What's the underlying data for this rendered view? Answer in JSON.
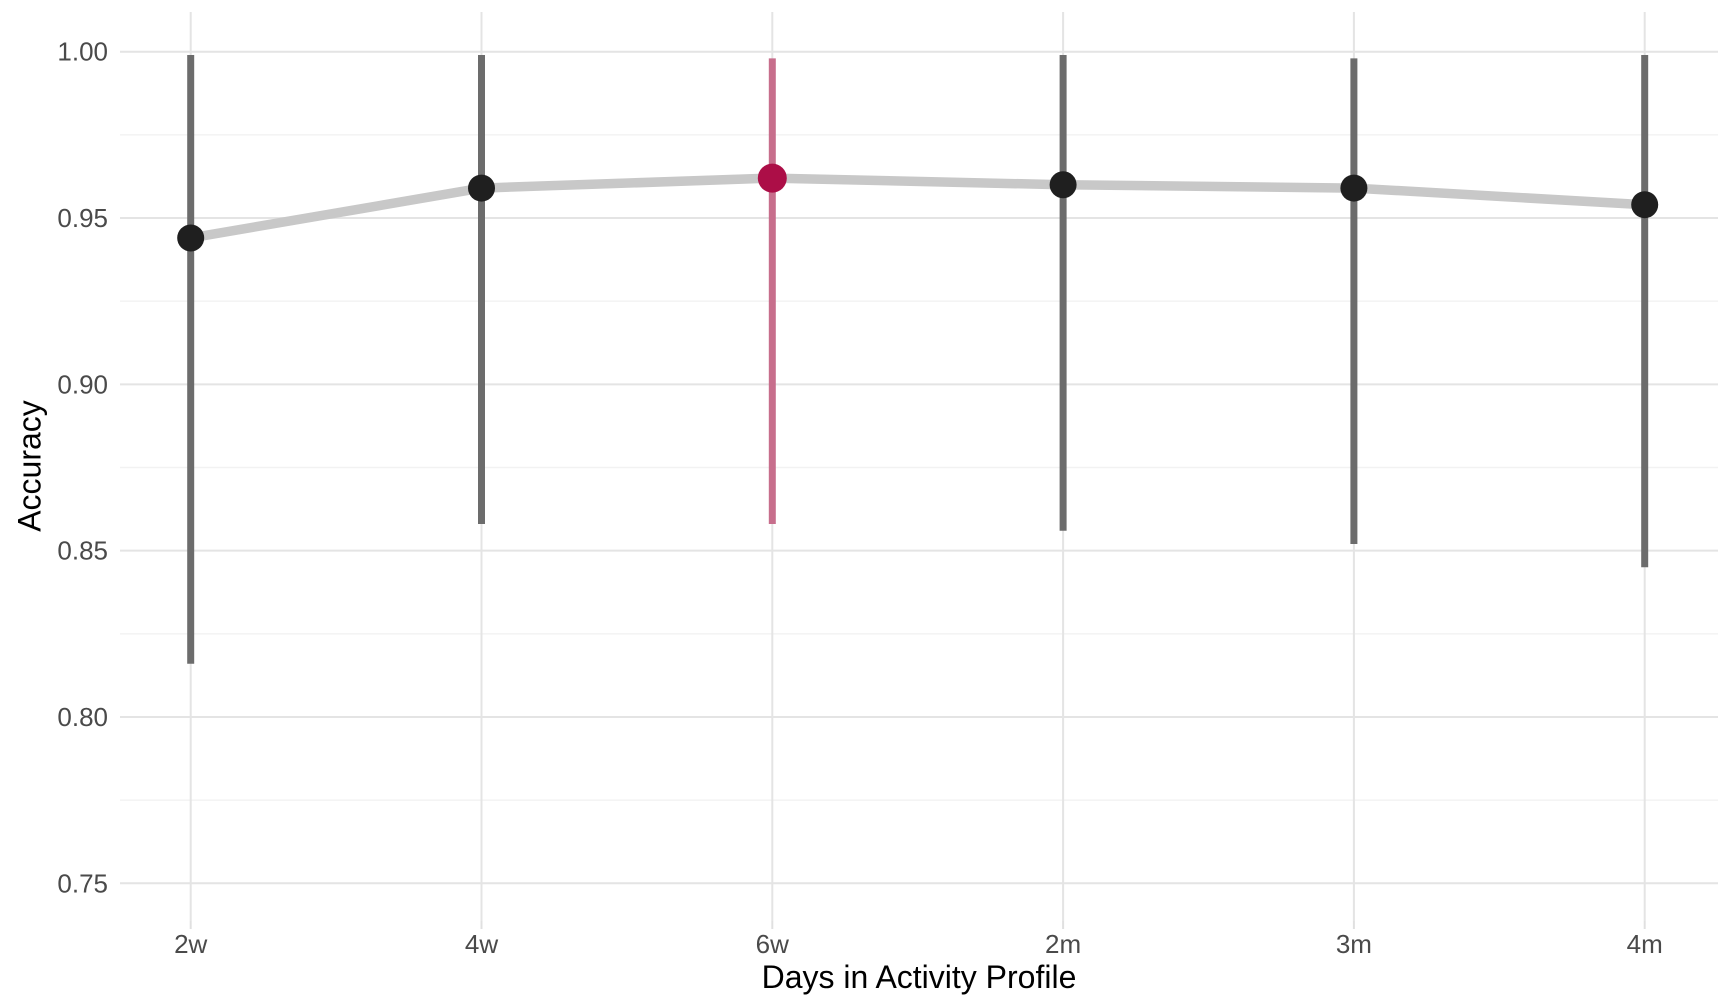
{
  "chart_data": {
    "type": "line",
    "title": "",
    "xlabel": "Days in Activity Profile",
    "ylabel": "Accuracy",
    "categories": [
      "2w",
      "4w",
      "6w",
      "2m",
      "3m",
      "4m"
    ],
    "series": [
      {
        "name": "Accuracy",
        "values": [
          0.944,
          0.959,
          0.962,
          0.96,
          0.959,
          0.954
        ],
        "ci_lower": [
          0.816,
          0.858,
          0.858,
          0.856,
          0.852,
          0.845
        ],
        "ci_upper": [
          0.999,
          0.999,
          0.998,
          0.999,
          0.998,
          0.999
        ]
      }
    ],
    "highlight_index": 2,
    "highlight_category": "6w",
    "ylim": [
      0.738,
      1.012
    ],
    "ytick_labels": [
      "0.75",
      "0.80",
      "0.85",
      "0.90",
      "0.95",
      "1.00"
    ],
    "ytick_values": [
      0.75,
      0.8,
      0.85,
      0.9,
      0.95,
      1.0
    ],
    "ytick_minor_values": [
      0.775,
      0.825,
      0.875,
      0.925,
      0.975
    ],
    "grid": "horizontal major+minor, vertical major at categories",
    "legend": "none",
    "colors": {
      "point": "#1f1f1f",
      "highlight_point": "#ac0e47",
      "highlight_errorbar": "#c76e8c",
      "errorbar": "#6c6c6c",
      "trend_line": "#c8c8c8",
      "gridline_major": "#e4e4e4",
      "gridline_minor": "#f2f2f2",
      "tick_mark": "#e0e0e0",
      "tick_label": "#4a4a4a",
      "axis_title": "#000000",
      "background": "#ffffff"
    }
  }
}
